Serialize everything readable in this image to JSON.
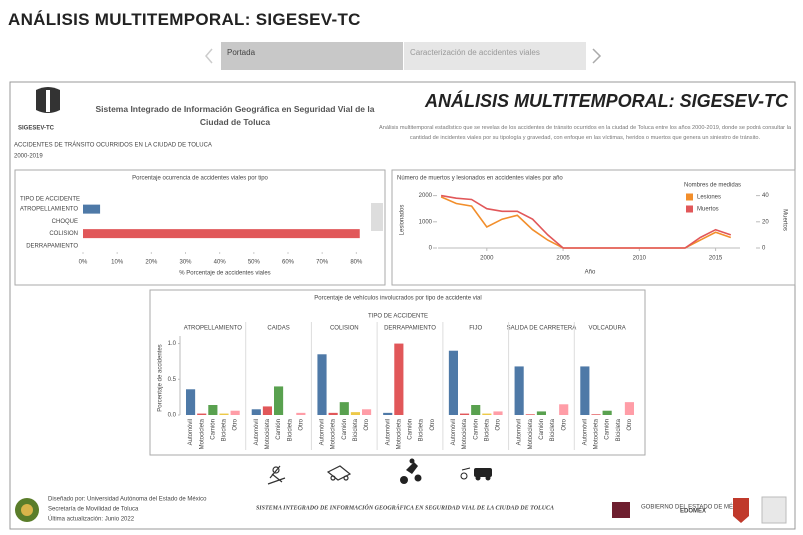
{
  "header": {
    "title": "ANÁLISIS MULTITEMPORAL: SIGESEV-TC"
  },
  "tabs": [
    "Portada",
    "Caracterización de accidentes viales"
  ],
  "dashboard": {
    "logo_text": "SIGESEV-TC",
    "system_title": "Sistema Integrado de Información Geográfica en Seguridad Vial de la Ciudad de Toluca",
    "subtitle": "ACCIDENTES DE TRÁNSITO OCURRIDOS EN LA CIUDAD DE TOLUCA",
    "period": "2000-2019",
    "big_title": "ANÁLISIS MULTITEMPORAL: SIGESEV-TC",
    "description": "Análisis multitemporal estadístico que se revelas de los accidentes de tránsito ocurridos en la ciudad de Toluca entre los años 2000-2019, donde se podrá consultar la cantidad de incidentes viales por su tipología y gravedad, con enfoque en las víctimas, heridos o muertos que genera un siniestro de tránsito."
  },
  "chart_data": [
    {
      "type": "hbar",
      "title": "Porcentaje ocurrencia de accidentes viales por tipo",
      "category_title": "TIPO DE ACCIDENTE",
      "x_label": "% Porcentaje de accidentes viales",
      "categories": [
        "ATROPELLAMIENTO",
        "CHOQUE",
        "COLISION",
        "DERRAPAMIENTO"
      ],
      "values": [
        5,
        0,
        81,
        0
      ],
      "colors": [
        "#4e79a7",
        "#4e79a7",
        "#e15759",
        "#e15759"
      ],
      "xlim": [
        0,
        84
      ],
      "xticks": [
        {
          "value": 0,
          "label": "0%"
        },
        {
          "value": 10,
          "label": "10%"
        },
        {
          "value": 20,
          "label": "20%"
        },
        {
          "value": 30,
          "label": "30%"
        },
        {
          "value": 40,
          "label": "40%"
        },
        {
          "value": 50,
          "label": "50%"
        },
        {
          "value": 60,
          "label": "60%"
        },
        {
          "value": 70,
          "label": "70%"
        },
        {
          "value": 80,
          "label": "80%"
        }
      ]
    },
    {
      "type": "line",
      "title": "Número de muertos y lesionados en accidentes viales por año",
      "x_label": "Año",
      "y_label": "Lesionados",
      "y2_label": "Muertos",
      "legend_title": "Nombres de medidas",
      "legend": "top-right",
      "x": [
        1997,
        1998,
        1999,
        2000,
        2001,
        2002,
        2003,
        2004,
        2005,
        2006,
        2007,
        2008,
        2009,
        2010,
        2011,
        2012,
        2013,
        2014,
        2015,
        2016
      ],
      "xlim": [
        1996.8,
        2016.6
      ],
      "xticks": [
        2000,
        2005,
        2010,
        2015
      ],
      "ylim": [
        0,
        2100
      ],
      "yticks": [
        0,
        1000,
        2000
      ],
      "y2lim": [
        0,
        42
      ],
      "y2ticks": [
        0,
        20,
        40
      ],
      "series": [
        {
          "name": "Lesiones",
          "color": "#f28e2b",
          "values": [
            1950,
            1700,
            1600,
            800,
            1100,
            1250,
            700,
            300,
            0,
            0,
            0,
            0,
            0,
            0,
            0,
            0,
            0,
            300,
            600,
            400
          ]
        },
        {
          "name": "Muertos",
          "color": "#e15759",
          "axis": "y2",
          "values": [
            40,
            38,
            37,
            30,
            28,
            28,
            22,
            10,
            0,
            0,
            0,
            0,
            0,
            0,
            0,
            0,
            0,
            8,
            14,
            10
          ]
        }
      ]
    },
    {
      "type": "grouped-bar",
      "title": "Porcentaje de vehículos involucrados por tipo de accidente vial",
      "group_title": "TIPO DE ACCIDENTE",
      "y_label": "Porcentaje de accidentes",
      "categories": [
        "ATROPELLAMIENTO",
        "CAIDAS",
        "COLISION",
        "DERRAPAMIENTO",
        "FIJO",
        "SALIDA DE CARRETERA",
        "VOLCADURA"
      ],
      "ylim": [
        0,
        1.05
      ],
      "yticks": [
        {
          "value": 0,
          "label": "0.0"
        },
        {
          "value": 0.5,
          "label": "0.5"
        },
        {
          "value": 1,
          "label": "1.0"
        }
      ],
      "series": [
        {
          "name": "Automóvil",
          "color": "#4e79a7",
          "values": [
            0.36,
            0.08,
            0.85,
            0.03,
            0.9,
            0.68,
            0.68
          ]
        },
        {
          "name": "Motocicleta",
          "color": "#e15759",
          "values": [
            0.02,
            0.12,
            0.03,
            1.0,
            0.02,
            0.01,
            0.01
          ]
        },
        {
          "name": "Camión",
          "color": "#59a14f",
          "values": [
            0.14,
            0.4,
            0.18,
            0.0,
            0.14,
            0.05,
            0.06
          ]
        },
        {
          "name": "Bicicleta",
          "color": "#edc948",
          "values": [
            0.02,
            0.0,
            0.04,
            0.0,
            0.02,
            0.0,
            0.0
          ]
        },
        {
          "name": "Otro",
          "color": "#ff9da7",
          "values": [
            0.06,
            0.03,
            0.08,
            0.0,
            0.05,
            0.15,
            0.18
          ]
        }
      ]
    }
  ],
  "footer": {
    "credits": [
      "Diseñado por: Universidad Autónoma del Estado de México",
      "Secretaría de Movilidad de Toluca",
      "Última actualización: Junio 2022"
    ],
    "center": "SISTEMA INTEGRADO DE INFORMACIÓN GEOGRÁFICA EN SEGURIDAD VIAL DE LA CIUDAD DE TOLUCA",
    "gov": "GOBIERNO DEL ESTADO DE MÉXICO",
    "brand": "EDOMÉX"
  }
}
